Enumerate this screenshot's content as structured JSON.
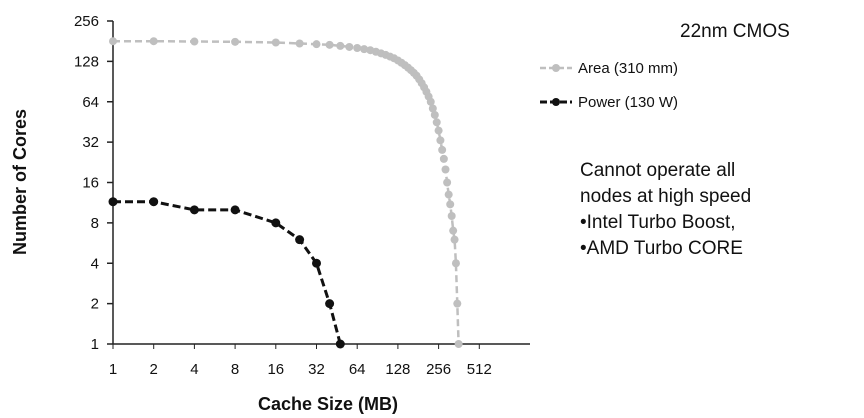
{
  "chart_data": {
    "type": "line",
    "xlabel": "Cache Size (MB)",
    "ylabel": "Number of Cores",
    "x_scale": "log2",
    "y_scale": "log2",
    "x_ticks": [
      "1",
      "2",
      "4",
      "8",
      "16",
      "32",
      "64",
      "128",
      "256",
      "512"
    ],
    "y_ticks": [
      "1",
      "2",
      "4",
      "8",
      "16",
      "32",
      "64",
      "128",
      "256"
    ],
    "xlim": [
      1,
      512
    ],
    "ylim": [
      1,
      256
    ],
    "grid": false,
    "legend_position": "top-right",
    "series": [
      {
        "name": "Area (310 mm)",
        "color": "#bfbfbf",
        "line_style": "dashed",
        "marker": "circle",
        "points": [
          [
            1,
            181
          ],
          [
            2,
            181
          ],
          [
            4,
            180
          ],
          [
            8,
            179
          ],
          [
            16,
            177
          ],
          [
            24,
            174
          ],
          [
            32,
            172
          ],
          [
            40,
            170
          ],
          [
            48,
            167
          ],
          [
            56,
            164
          ],
          [
            64,
            161
          ],
          [
            72,
            158
          ],
          [
            80,
            155
          ],
          [
            88,
            151
          ],
          [
            96,
            147
          ],
          [
            104,
            143
          ],
          [
            112,
            139
          ],
          [
            120,
            135
          ],
          [
            128,
            130
          ],
          [
            136,
            125
          ],
          [
            144,
            120
          ],
          [
            152,
            115
          ],
          [
            160,
            110
          ],
          [
            168,
            105
          ],
          [
            176,
            100
          ],
          [
            184,
            94
          ],
          [
            192,
            88
          ],
          [
            200,
            82
          ],
          [
            208,
            76
          ],
          [
            216,
            70
          ],
          [
            224,
            64
          ],
          [
            232,
            57
          ],
          [
            240,
            51
          ],
          [
            248,
            45
          ],
          [
            256,
            39
          ],
          [
            264,
            33
          ],
          [
            272,
            28
          ],
          [
            280,
            24
          ],
          [
            288,
            20
          ],
          [
            296,
            16
          ],
          [
            304,
            13
          ],
          [
            312,
            11
          ],
          [
            320,
            9
          ],
          [
            328,
            7
          ],
          [
            336,
            6
          ],
          [
            344,
            4
          ],
          [
            352,
            2
          ],
          [
            360,
            1
          ]
        ]
      },
      {
        "name": "Power (130 W)",
        "color": "#111111",
        "line_style": "dashed",
        "marker": "circle",
        "points": [
          [
            1,
            11.5
          ],
          [
            2,
            11.5
          ],
          [
            4,
            10
          ],
          [
            8,
            10
          ],
          [
            16,
            8
          ],
          [
            24,
            6
          ],
          [
            32,
            4
          ],
          [
            40,
            2
          ],
          [
            48,
            1
          ]
        ]
      }
    ]
  },
  "annotations": {
    "tech_label": "22nm CMOS",
    "side_note": [
      "Cannot operate all",
      "nodes at high speed",
      "•Intel Turbo Boost,",
      "•AMD Turbo CORE"
    ]
  }
}
